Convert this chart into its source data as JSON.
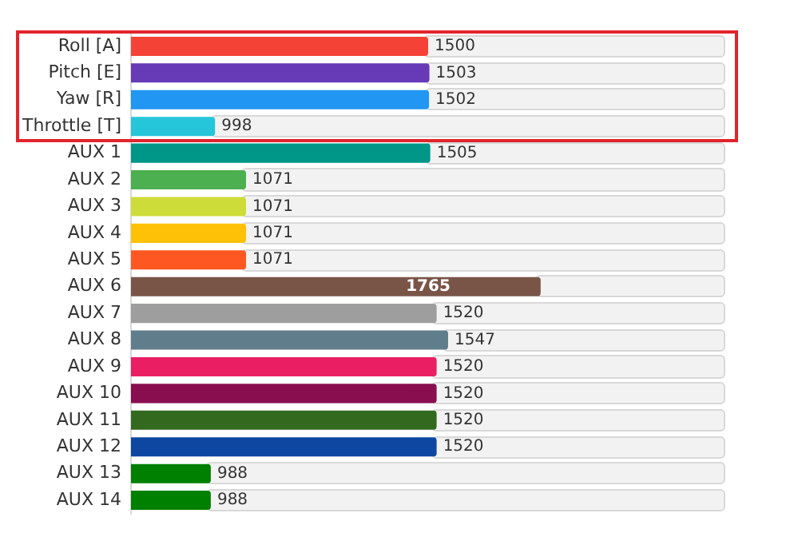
{
  "chart_data": {
    "type": "bar",
    "orientation": "horizontal",
    "categories": [
      "Roll [A]",
      "Pitch [E]",
      "Yaw [R]",
      "Throttle [T]",
      "AUX 1",
      "AUX 2",
      "AUX 3",
      "AUX 4",
      "AUX 5",
      "AUX 6",
      "AUX 7",
      "AUX 8",
      "AUX 9",
      "AUX 10",
      "AUX 11",
      "AUX 12",
      "AUX 13",
      "AUX 14"
    ],
    "values": [
      1500,
      1503,
      1502,
      998,
      1505,
      1071,
      1071,
      1071,
      1071,
      1765,
      1520,
      1547,
      1520,
      1520,
      1520,
      1520,
      988,
      988
    ],
    "colors": [
      "#f44336",
      "#673ab7",
      "#2196f3",
      "#26c6da",
      "#009688",
      "#4caf50",
      "#cddc39",
      "#ffc107",
      "#ff5722",
      "#795548",
      "#9e9e9e",
      "#607d8b",
      "#e91e63",
      "#880e4f",
      "#33691e",
      "#0d47a1",
      "#008000",
      "#008000"
    ],
    "xlim": [
      800,
      2200
    ],
    "data_labels": true,
    "tick_labels": "y",
    "grid": false,
    "legend": false
  }
}
